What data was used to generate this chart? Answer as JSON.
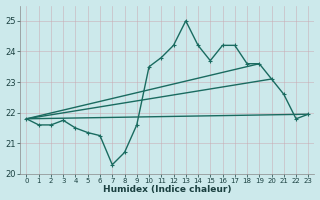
{
  "title": "",
  "xlabel": "Humidex (Indice chaleur)",
  "bg_color": "#cce9eb",
  "grid_color": "#aad4d8",
  "line_color": "#1a6b60",
  "xlim": [
    -0.5,
    23.5
  ],
  "ylim": [
    20,
    25.5
  ],
  "yticks": [
    20,
    21,
    22,
    23,
    24,
    25
  ],
  "xticks": [
    0,
    1,
    2,
    3,
    4,
    5,
    6,
    7,
    8,
    9,
    10,
    11,
    12,
    13,
    14,
    15,
    16,
    17,
    18,
    19,
    20,
    21,
    22,
    23
  ],
  "line1_x": [
    0,
    1,
    2,
    3,
    4,
    5,
    6,
    7,
    8,
    9,
    10,
    11,
    12,
    13,
    14,
    15,
    16,
    17,
    18,
    19,
    20,
    21,
    22,
    23
  ],
  "line1_y": [
    21.8,
    21.6,
    21.6,
    21.75,
    21.5,
    21.35,
    21.25,
    20.3,
    20.7,
    21.6,
    23.5,
    23.8,
    24.2,
    25.0,
    24.2,
    23.7,
    24.2,
    24.2,
    23.6,
    23.6,
    23.1,
    22.6,
    21.8,
    21.95
  ],
  "line2_x": [
    0,
    23
  ],
  "line2_y": [
    21.8,
    21.95
  ],
  "line3_x": [
    0,
    22
  ],
  "line3_y": [
    21.8,
    21.95
  ],
  "line4_x": [
    0,
    20
  ],
  "line4_y": [
    21.8,
    23.1
  ],
  "line5_x": [
    0,
    19
  ],
  "line5_y": [
    21.8,
    23.6
  ]
}
